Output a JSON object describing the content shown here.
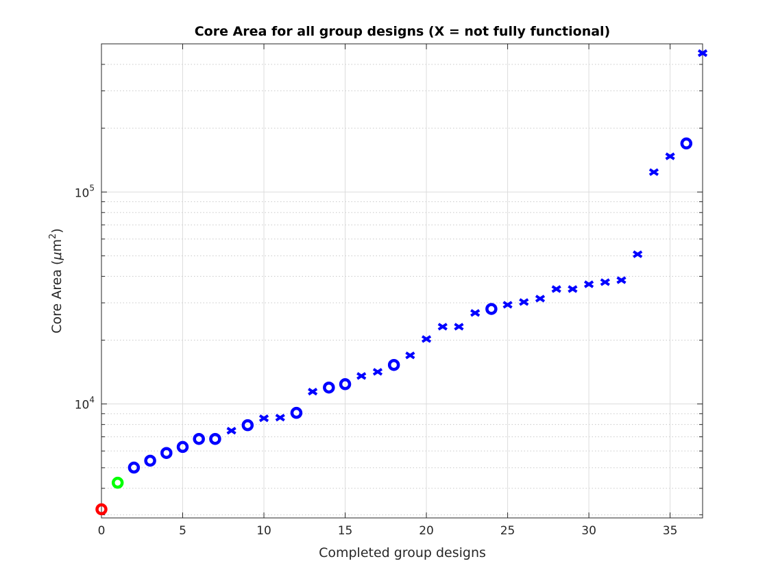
{
  "chart_data": {
    "type": "scatter",
    "title": "Core Area for all group designs (X = not fully functional)",
    "xlabel": "Completed group designs",
    "ylabel_prefix": "Core Area (",
    "ylabel_mu": "μ",
    "ylabel_unit": "m",
    "ylabel_exp": "2",
    "ylabel_suffix": ")",
    "yscale": "log",
    "xlim": [
      0,
      37
    ],
    "ylim": [
      2900,
      500000
    ],
    "grid": true,
    "xticks": [
      0,
      5,
      10,
      15,
      20,
      25,
      30,
      35
    ],
    "xtick_labels": [
      "0",
      "5",
      "10",
      "15",
      "20",
      "25",
      "30",
      "35"
    ],
    "yticks": [
      {
        "value": 10000,
        "base": "10",
        "exp": "4"
      },
      {
        "value": 100000,
        "base": "10",
        "exp": "5"
      }
    ],
    "colors": {
      "reference": "#ff0000",
      "highlight": "#00ff00",
      "group": "#0000ff"
    },
    "points": [
      {
        "x": 0,
        "y": 3185,
        "marker": "o",
        "color": "reference"
      },
      {
        "x": 1,
        "y": 4250,
        "marker": "o",
        "color": "highlight"
      },
      {
        "x": 2,
        "y": 5010,
        "marker": "o",
        "color": "group"
      },
      {
        "x": 3,
        "y": 5400,
        "marker": "o",
        "color": "group"
      },
      {
        "x": 4,
        "y": 5870,
        "marker": "o",
        "color": "group"
      },
      {
        "x": 5,
        "y": 6270,
        "marker": "o",
        "color": "group"
      },
      {
        "x": 6,
        "y": 6840,
        "marker": "o",
        "color": "group"
      },
      {
        "x": 7,
        "y": 6840,
        "marker": "o",
        "color": "group"
      },
      {
        "x": 8,
        "y": 7480,
        "marker": "x",
        "color": "group"
      },
      {
        "x": 9,
        "y": 7940,
        "marker": "o",
        "color": "group"
      },
      {
        "x": 10,
        "y": 8560,
        "marker": "x",
        "color": "group"
      },
      {
        "x": 11,
        "y": 8620,
        "marker": "x",
        "color": "group"
      },
      {
        "x": 12,
        "y": 9080,
        "marker": "o",
        "color": "group"
      },
      {
        "x": 13,
        "y": 11430,
        "marker": "x",
        "color": "group"
      },
      {
        "x": 14,
        "y": 11950,
        "marker": "o",
        "color": "group"
      },
      {
        "x": 15,
        "y": 12400,
        "marker": "o",
        "color": "group"
      },
      {
        "x": 16,
        "y": 13550,
        "marker": "x",
        "color": "group"
      },
      {
        "x": 17,
        "y": 14180,
        "marker": "x",
        "color": "group"
      },
      {
        "x": 18,
        "y": 15280,
        "marker": "o",
        "color": "group"
      },
      {
        "x": 19,
        "y": 16950,
        "marker": "x",
        "color": "group"
      },
      {
        "x": 20,
        "y": 20250,
        "marker": "x",
        "color": "group"
      },
      {
        "x": 21,
        "y": 23150,
        "marker": "x",
        "color": "group"
      },
      {
        "x": 22,
        "y": 23150,
        "marker": "x",
        "color": "group"
      },
      {
        "x": 23,
        "y": 26870,
        "marker": "x",
        "color": "group"
      },
      {
        "x": 24,
        "y": 28070,
        "marker": "o",
        "color": "group"
      },
      {
        "x": 25,
        "y": 29370,
        "marker": "x",
        "color": "group"
      },
      {
        "x": 26,
        "y": 30260,
        "marker": "x",
        "color": "group"
      },
      {
        "x": 27,
        "y": 31410,
        "marker": "x",
        "color": "group"
      },
      {
        "x": 28,
        "y": 34850,
        "marker": "x",
        "color": "group"
      },
      {
        "x": 29,
        "y": 34850,
        "marker": "x",
        "color": "group"
      },
      {
        "x": 30,
        "y": 36700,
        "marker": "x",
        "color": "group"
      },
      {
        "x": 31,
        "y": 37550,
        "marker": "x",
        "color": "group"
      },
      {
        "x": 32,
        "y": 38370,
        "marker": "x",
        "color": "group"
      },
      {
        "x": 33,
        "y": 50850,
        "marker": "x",
        "color": "group"
      },
      {
        "x": 34,
        "y": 124100,
        "marker": "x",
        "color": "group"
      },
      {
        "x": 35,
        "y": 147300,
        "marker": "x",
        "color": "group"
      },
      {
        "x": 36,
        "y": 169400,
        "marker": "o",
        "color": "group"
      },
      {
        "x": 37,
        "y": 452000,
        "marker": "x",
        "color": "group"
      }
    ]
  }
}
